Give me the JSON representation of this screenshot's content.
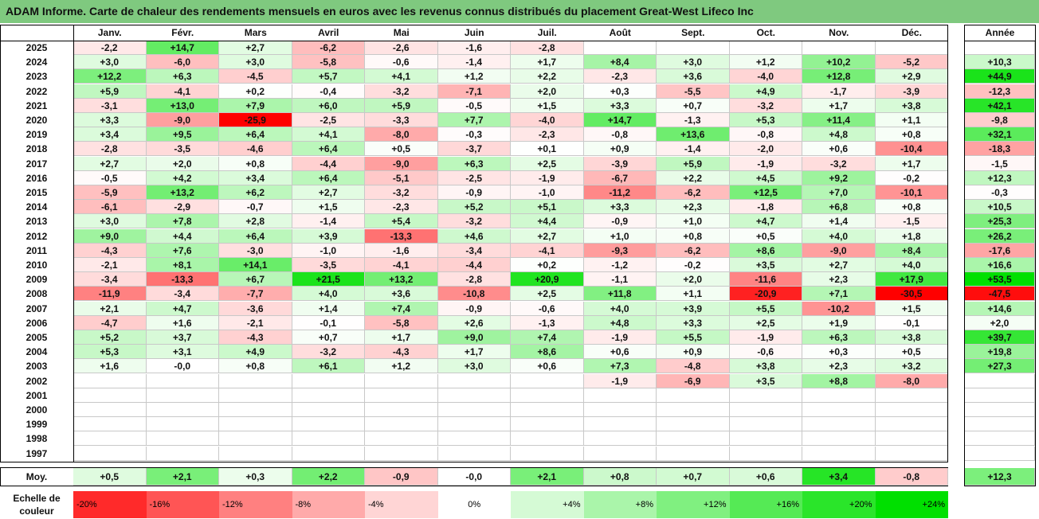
{
  "title": "ADAM Informe. Carte de chaleur des rendements mensuels en euros avec les revenus connus distribués du placement Great-West Lifeco Inc",
  "colors": {
    "title_bg": "#7fc97f",
    "negative_max": "#ff0000",
    "positive_max": "#00e000",
    "neutral": "#ffffff"
  },
  "chart_data": {
    "type": "heatmap",
    "months": [
      "Janv.",
      "Févr.",
      "Mars",
      "Avril",
      "Mai",
      "Juin",
      "Juil.",
      "Août",
      "Sept.",
      "Oct.",
      "Nov.",
      "Déc."
    ],
    "year_header": "Année",
    "rows": [
      {
        "year": "2025",
        "values": [
          "-2,2",
          "+14,7",
          "+2,7",
          "-6,2",
          "-2,6",
          "-1,6",
          "-2,8",
          "",
          "",
          "",
          "",
          ""
        ],
        "annual": ""
      },
      {
        "year": "2024",
        "values": [
          "+3,0",
          "-6,0",
          "+3,0",
          "-5,8",
          "-0,6",
          "-1,4",
          "+1,7",
          "+8,4",
          "+3,0",
          "+1,2",
          "+10,2",
          "-5,2"
        ],
        "annual": "+10,3"
      },
      {
        "year": "2023",
        "values": [
          "+12,2",
          "+6,3",
          "-4,5",
          "+5,7",
          "+4,1",
          "+1,2",
          "+2,2",
          "-2,3",
          "+3,6",
          "-4,0",
          "+12,8",
          "+2,9"
        ],
        "annual": "+44,9"
      },
      {
        "year": "2022",
        "values": [
          "+5,9",
          "-4,1",
          "+0,2",
          "-0,4",
          "-3,2",
          "-7,1",
          "+2,0",
          "+0,3",
          "-5,5",
          "+4,9",
          "-1,7",
          "-3,9"
        ],
        "annual": "-12,3"
      },
      {
        "year": "2021",
        "values": [
          "-3,1",
          "+13,0",
          "+7,9",
          "+6,0",
          "+5,9",
          "-0,5",
          "+1,5",
          "+3,3",
          "+0,7",
          "-3,2",
          "+1,7",
          "+3,8"
        ],
        "annual": "+42,1"
      },
      {
        "year": "2020",
        "values": [
          "+3,3",
          "-9,0",
          "-25,9",
          "-2,5",
          "-3,3",
          "+7,7",
          "-4,0",
          "+14,7",
          "-1,3",
          "+5,3",
          "+11,4",
          "+1,1"
        ],
        "annual": "-9,8"
      },
      {
        "year": "2019",
        "values": [
          "+3,4",
          "+9,5",
          "+6,4",
          "+4,1",
          "-8,0",
          "-0,3",
          "-2,3",
          "-0,8",
          "+13,6",
          "-0,8",
          "+4,8",
          "+0,8"
        ],
        "annual": "+32,1"
      },
      {
        "year": "2018",
        "values": [
          "-2,8",
          "-3,5",
          "-4,6",
          "+6,4",
          "+0,5",
          "-3,7",
          "+0,1",
          "+0,9",
          "-1,4",
          "-2,0",
          "+0,6",
          "-10,4"
        ],
        "annual": "-18,3"
      },
      {
        "year": "2017",
        "values": [
          "+2,7",
          "+2,0",
          "+0,8",
          "-4,4",
          "-9,0",
          "+6,3",
          "+2,5",
          "-3,9",
          "+5,9",
          "-1,9",
          "-3,2",
          "+1,7"
        ],
        "annual": "-1,5"
      },
      {
        "year": "2016",
        "values": [
          "-0,5",
          "+4,2",
          "+3,4",
          "+6,4",
          "-5,1",
          "-2,5",
          "-1,9",
          "-6,7",
          "+2,2",
          "+4,5",
          "+9,2",
          "-0,2"
        ],
        "annual": "+12,3"
      },
      {
        "year": "2015",
        "values": [
          "-5,9",
          "+13,2",
          "+6,2",
          "+2,7",
          "-3,2",
          "-0,9",
          "-1,0",
          "-11,2",
          "-6,2",
          "+12,5",
          "+7,0",
          "-10,1"
        ],
        "annual": "-0,3"
      },
      {
        "year": "2014",
        "values": [
          "-6,1",
          "-2,9",
          "-0,7",
          "+1,5",
          "-2,3",
          "+5,2",
          "+5,1",
          "+3,3",
          "+2,3",
          "-1,8",
          "+6,8",
          "+0,8"
        ],
        "annual": "+10,5"
      },
      {
        "year": "2013",
        "values": [
          "+3,0",
          "+7,8",
          "+2,8",
          "-1,4",
          "+5,4",
          "-3,2",
          "+4,4",
          "-0,9",
          "+1,0",
          "+4,7",
          "+1,4",
          "-1,5"
        ],
        "annual": "+25,3"
      },
      {
        "year": "2012",
        "values": [
          "+9,0",
          "+4,4",
          "+6,4",
          "+3,9",
          "-13,3",
          "+4,6",
          "+2,7",
          "+1,0",
          "+0,8",
          "+0,5",
          "+4,0",
          "+1,8"
        ],
        "annual": "+26,2"
      },
      {
        "year": "2011",
        "values": [
          "-4,3",
          "+7,6",
          "-3,0",
          "-1,0",
          "-1,6",
          "-3,4",
          "-4,1",
          "-9,3",
          "-6,2",
          "+8,6",
          "-9,0",
          "+8,4"
        ],
        "annual": "-17,6"
      },
      {
        "year": "2010",
        "values": [
          "-2,1",
          "+8,1",
          "+14,1",
          "-3,5",
          "-4,1",
          "-4,4",
          "+0,2",
          "-1,2",
          "-0,2",
          "+3,5",
          "+2,7",
          "+4,0"
        ],
        "annual": "+16,6"
      },
      {
        "year": "2009",
        "values": [
          "-3,4",
          "-13,3",
          "+6,7",
          "+21,5",
          "+13,2",
          "-2,8",
          "+20,9",
          "-1,1",
          "+2,0",
          "-11,6",
          "+2,3",
          "+17,9"
        ],
        "annual": "+53,5"
      },
      {
        "year": "2008",
        "values": [
          "-11,9",
          "-3,4",
          "-7,7",
          "+4,0",
          "+3,6",
          "-10,8",
          "+2,5",
          "+11,8",
          "+1,1",
          "-20,9",
          "+7,1",
          "-30,5"
        ],
        "annual": "-47,5"
      },
      {
        "year": "2007",
        "values": [
          "+2,1",
          "+4,7",
          "-3,6",
          "+1,4",
          "+7,4",
          "-0,9",
          "-0,6",
          "+4,0",
          "+3,9",
          "+5,5",
          "-10,2",
          "+1,5"
        ],
        "annual": "+14,6"
      },
      {
        "year": "2006",
        "values": [
          "-4,7",
          "+1,6",
          "-2,1",
          "-0,1",
          "-5,8",
          "+2,6",
          "-1,3",
          "+4,8",
          "+3,3",
          "+2,5",
          "+1,9",
          "-0,1"
        ],
        "annual": "+2,0"
      },
      {
        "year": "2005",
        "values": [
          "+5,2",
          "+3,7",
          "-4,3",
          "+0,7",
          "+1,7",
          "+9,0",
          "+7,4",
          "-1,9",
          "+5,5",
          "-1,9",
          "+6,3",
          "+3,8"
        ],
        "annual": "+39,7"
      },
      {
        "year": "2004",
        "values": [
          "+5,3",
          "+3,1",
          "+4,9",
          "-3,2",
          "-4,3",
          "+1,7",
          "+8,6",
          "+0,6",
          "+0,9",
          "-0,6",
          "+0,3",
          "+0,5"
        ],
        "annual": "+19,8"
      },
      {
        "year": "2003",
        "values": [
          "+1,6",
          "-0,0",
          "+0,8",
          "+6,1",
          "+1,2",
          "+3,0",
          "+0,6",
          "+7,3",
          "-4,8",
          "+3,8",
          "+2,3",
          "+3,2"
        ],
        "annual": "+27,3"
      },
      {
        "year": "2002",
        "values": [
          "",
          "",
          "",
          "",
          "",
          "",
          "",
          "-1,9",
          "-6,9",
          "+3,5",
          "+8,8",
          "-8,0"
        ],
        "annual": ""
      },
      {
        "year": "2001",
        "values": [
          "",
          "",
          "",
          "",
          "",
          "",
          "",
          "",
          "",
          "",
          "",
          ""
        ],
        "annual": ""
      },
      {
        "year": "2000",
        "values": [
          "",
          "",
          "",
          "",
          "",
          "",
          "",
          "",
          "",
          "",
          "",
          ""
        ],
        "annual": ""
      },
      {
        "year": "1999",
        "values": [
          "",
          "",
          "",
          "",
          "",
          "",
          "",
          "",
          "",
          "",
          "",
          ""
        ],
        "annual": ""
      },
      {
        "year": "1998",
        "values": [
          "",
          "",
          "",
          "",
          "",
          "",
          "",
          "",
          "",
          "",
          "",
          ""
        ],
        "annual": ""
      },
      {
        "year": "1997",
        "values": [
          "",
          "",
          "",
          "",
          "",
          "",
          "",
          "",
          "",
          "",
          "",
          ""
        ],
        "annual": ""
      }
    ],
    "average": {
      "label": "Moy.",
      "values": [
        "+0,5",
        "+2,1",
        "+0,3",
        "+2,2",
        "-0,9",
        "-0,0",
        "+2,1",
        "+0,8",
        "+0,7",
        "+0,6",
        "+3,4",
        "-0,8"
      ],
      "annual": "+12,3"
    },
    "scale": {
      "label_line1": "Echelle de",
      "label_line2": "couleur",
      "steps": [
        "-20%",
        "-16%",
        "-12%",
        "-8%",
        "-4%",
        "0%",
        "+4%",
        "+8%",
        "+12%",
        "+16%",
        "+20%",
        "+24%"
      ]
    }
  }
}
